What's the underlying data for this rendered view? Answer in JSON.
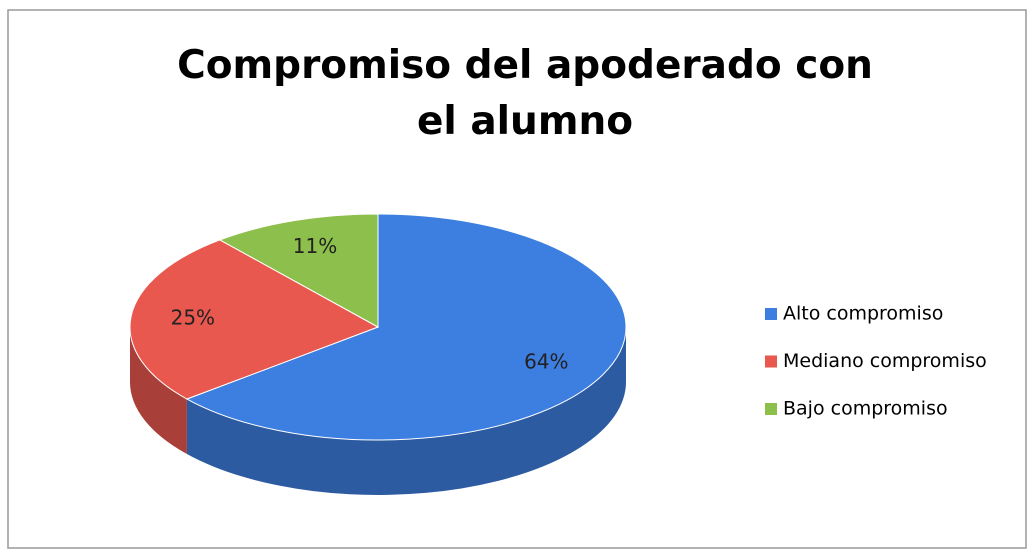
{
  "chart_data": {
    "type": "pie",
    "title": "Compromiso del apoderado con el alumno",
    "categories": [
      "Alto compromiso",
      "Mediano compromiso",
      "Bajo compromiso"
    ],
    "values": [
      64,
      25,
      11
    ],
    "value_labels": [
      "64%",
      "25%",
      "11%"
    ],
    "colors": [
      "#3d7fe0",
      "#e9584f",
      "#8cbf4b"
    ],
    "legend": "right"
  }
}
